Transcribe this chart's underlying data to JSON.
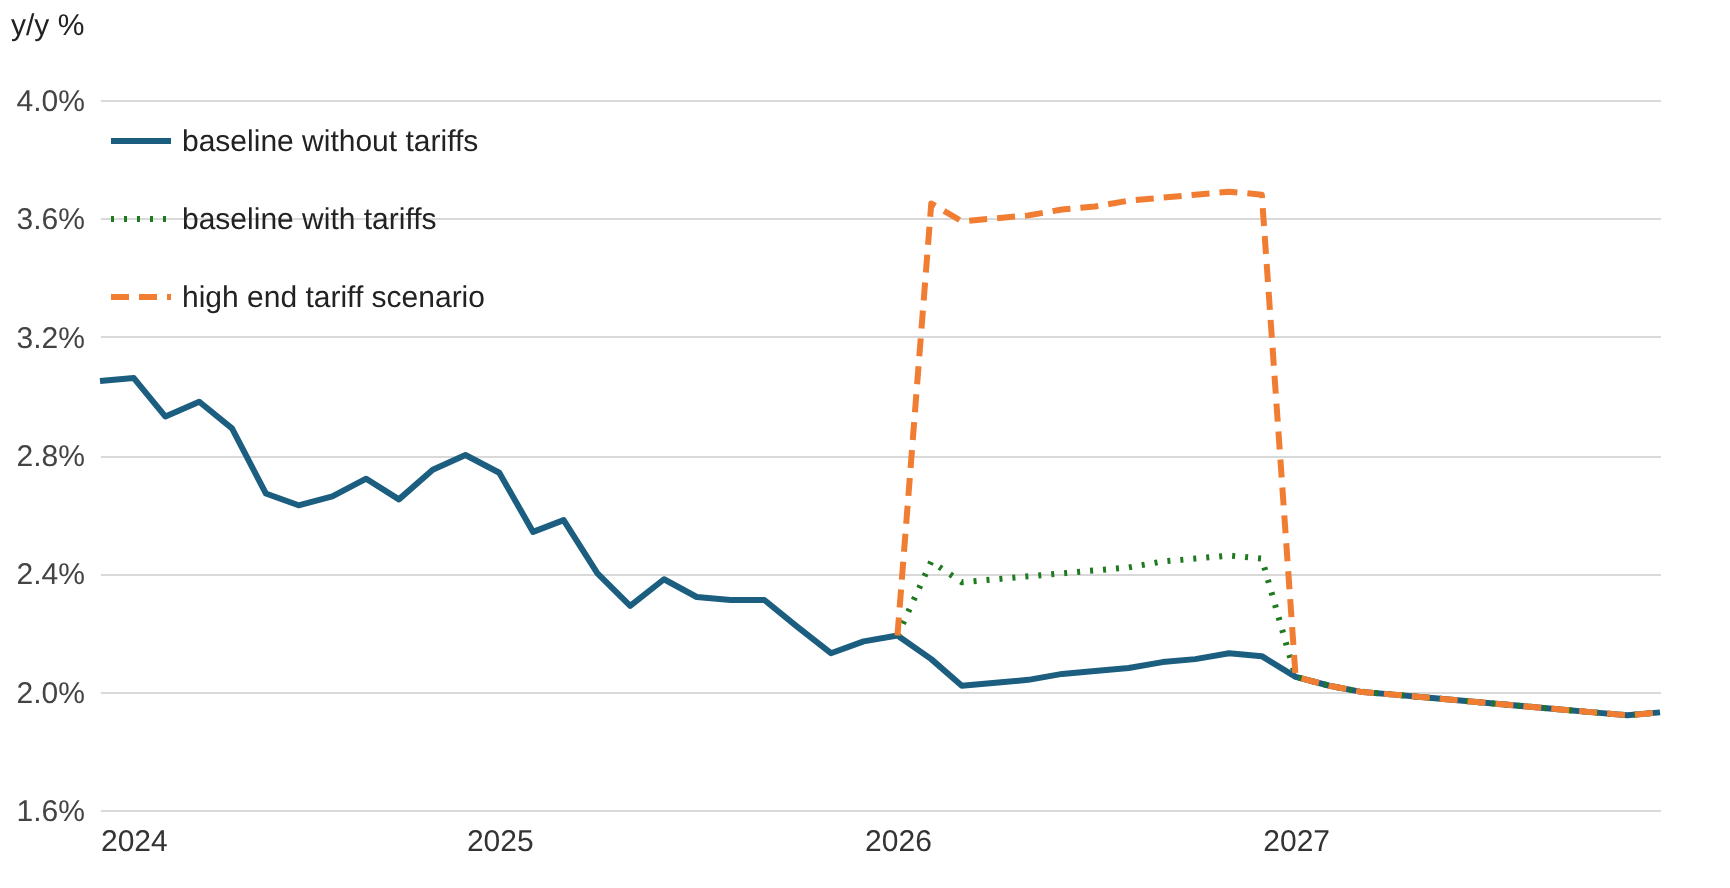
{
  "chart_data": {
    "type": "line",
    "ylabel": "y/y %",
    "x": [
      "2024-01",
      "2024-02",
      "2024-03",
      "2024-04",
      "2024-05",
      "2024-06",
      "2024-07",
      "2024-08",
      "2024-09",
      "2024-10",
      "2024-11",
      "2024-12",
      "2025-01",
      "2025-02",
      "2025-03",
      "2025-04",
      "2025-05",
      "2025-06",
      "2025-07",
      "2025-08",
      "2025-09",
      "2025-10",
      "2025-11",
      "2025-12",
      "2026-01",
      "2026-02",
      "2026-03",
      "2026-04",
      "2026-05",
      "2026-06",
      "2026-07",
      "2026-08",
      "2026-09",
      "2026-10",
      "2026-11",
      "2026-12",
      "2027-01",
      "2027-02",
      "2027-03",
      "2027-04",
      "2027-05",
      "2027-06",
      "2027-07",
      "2027-08",
      "2027-09",
      "2027-10",
      "2027-11",
      "2027-12"
    ],
    "series": [
      {
        "name": "baseline without tariffs",
        "color": "#1b5e80",
        "line_style": "solid",
        "values": [
          3.05,
          3.06,
          2.93,
          2.98,
          2.89,
          2.67,
          2.63,
          2.66,
          2.72,
          2.65,
          2.75,
          2.8,
          2.74,
          2.54,
          2.58,
          2.4,
          2.29,
          2.38,
          2.32,
          2.31,
          2.31,
          2.22,
          2.13,
          2.17,
          2.19,
          2.11,
          2.02,
          2.03,
          2.04,
          2.06,
          2.07,
          2.08,
          2.1,
          2.11,
          2.13,
          2.12,
          2.05,
          2.02,
          2.0,
          1.99,
          1.98,
          1.97,
          1.96,
          1.95,
          1.94,
          1.93,
          1.92,
          1.93
        ]
      },
      {
        "name": "baseline with tariffs",
        "color": "#1e7a1e",
        "line_style": "dotted",
        "values": [
          null,
          null,
          null,
          null,
          null,
          null,
          null,
          null,
          null,
          null,
          null,
          null,
          null,
          null,
          null,
          null,
          null,
          null,
          null,
          null,
          null,
          null,
          null,
          null,
          2.19,
          2.44,
          2.37,
          2.38,
          2.39,
          2.4,
          2.41,
          2.42,
          2.44,
          2.45,
          2.46,
          2.45,
          2.05,
          2.02,
          2.0,
          1.99,
          1.98,
          1.97,
          1.96,
          1.95,
          1.94,
          1.93,
          1.92,
          1.93
        ]
      },
      {
        "name": "high end tariff scenario",
        "color": "#f07d32",
        "line_style": "dashed",
        "values": [
          null,
          null,
          null,
          null,
          null,
          null,
          null,
          null,
          null,
          null,
          null,
          null,
          null,
          null,
          null,
          null,
          null,
          null,
          null,
          null,
          null,
          null,
          null,
          null,
          2.19,
          3.65,
          3.59,
          3.6,
          3.61,
          3.63,
          3.64,
          3.66,
          3.67,
          3.68,
          3.69,
          3.68,
          2.05,
          2.02,
          2.0,
          1.99,
          1.98,
          1.97,
          1.96,
          1.95,
          1.94,
          1.93,
          1.92,
          1.93
        ]
      }
    ],
    "xlim": [
      "2024-01",
      "2027-12"
    ],
    "xticks": [
      {
        "value": "2024-01",
        "label": "2024"
      },
      {
        "value": "2025-01",
        "label": "2025"
      },
      {
        "value": "2026-01",
        "label": "2026"
      },
      {
        "value": "2027-01",
        "label": "2027"
      }
    ],
    "ylim": [
      1.6,
      4.0
    ],
    "yticks": [
      {
        "value": 1.6,
        "label": "1.6%"
      },
      {
        "value": 2.0,
        "label": "2.0%"
      },
      {
        "value": 2.4,
        "label": "2.4%"
      },
      {
        "value": 2.8,
        "label": "2.8%"
      },
      {
        "value": 3.2,
        "label": "3.2%"
      },
      {
        "value": 3.6,
        "label": "3.6%"
      },
      {
        "value": 4.0,
        "label": "4.0%"
      }
    ],
    "grid": "y",
    "legend": "top left"
  }
}
